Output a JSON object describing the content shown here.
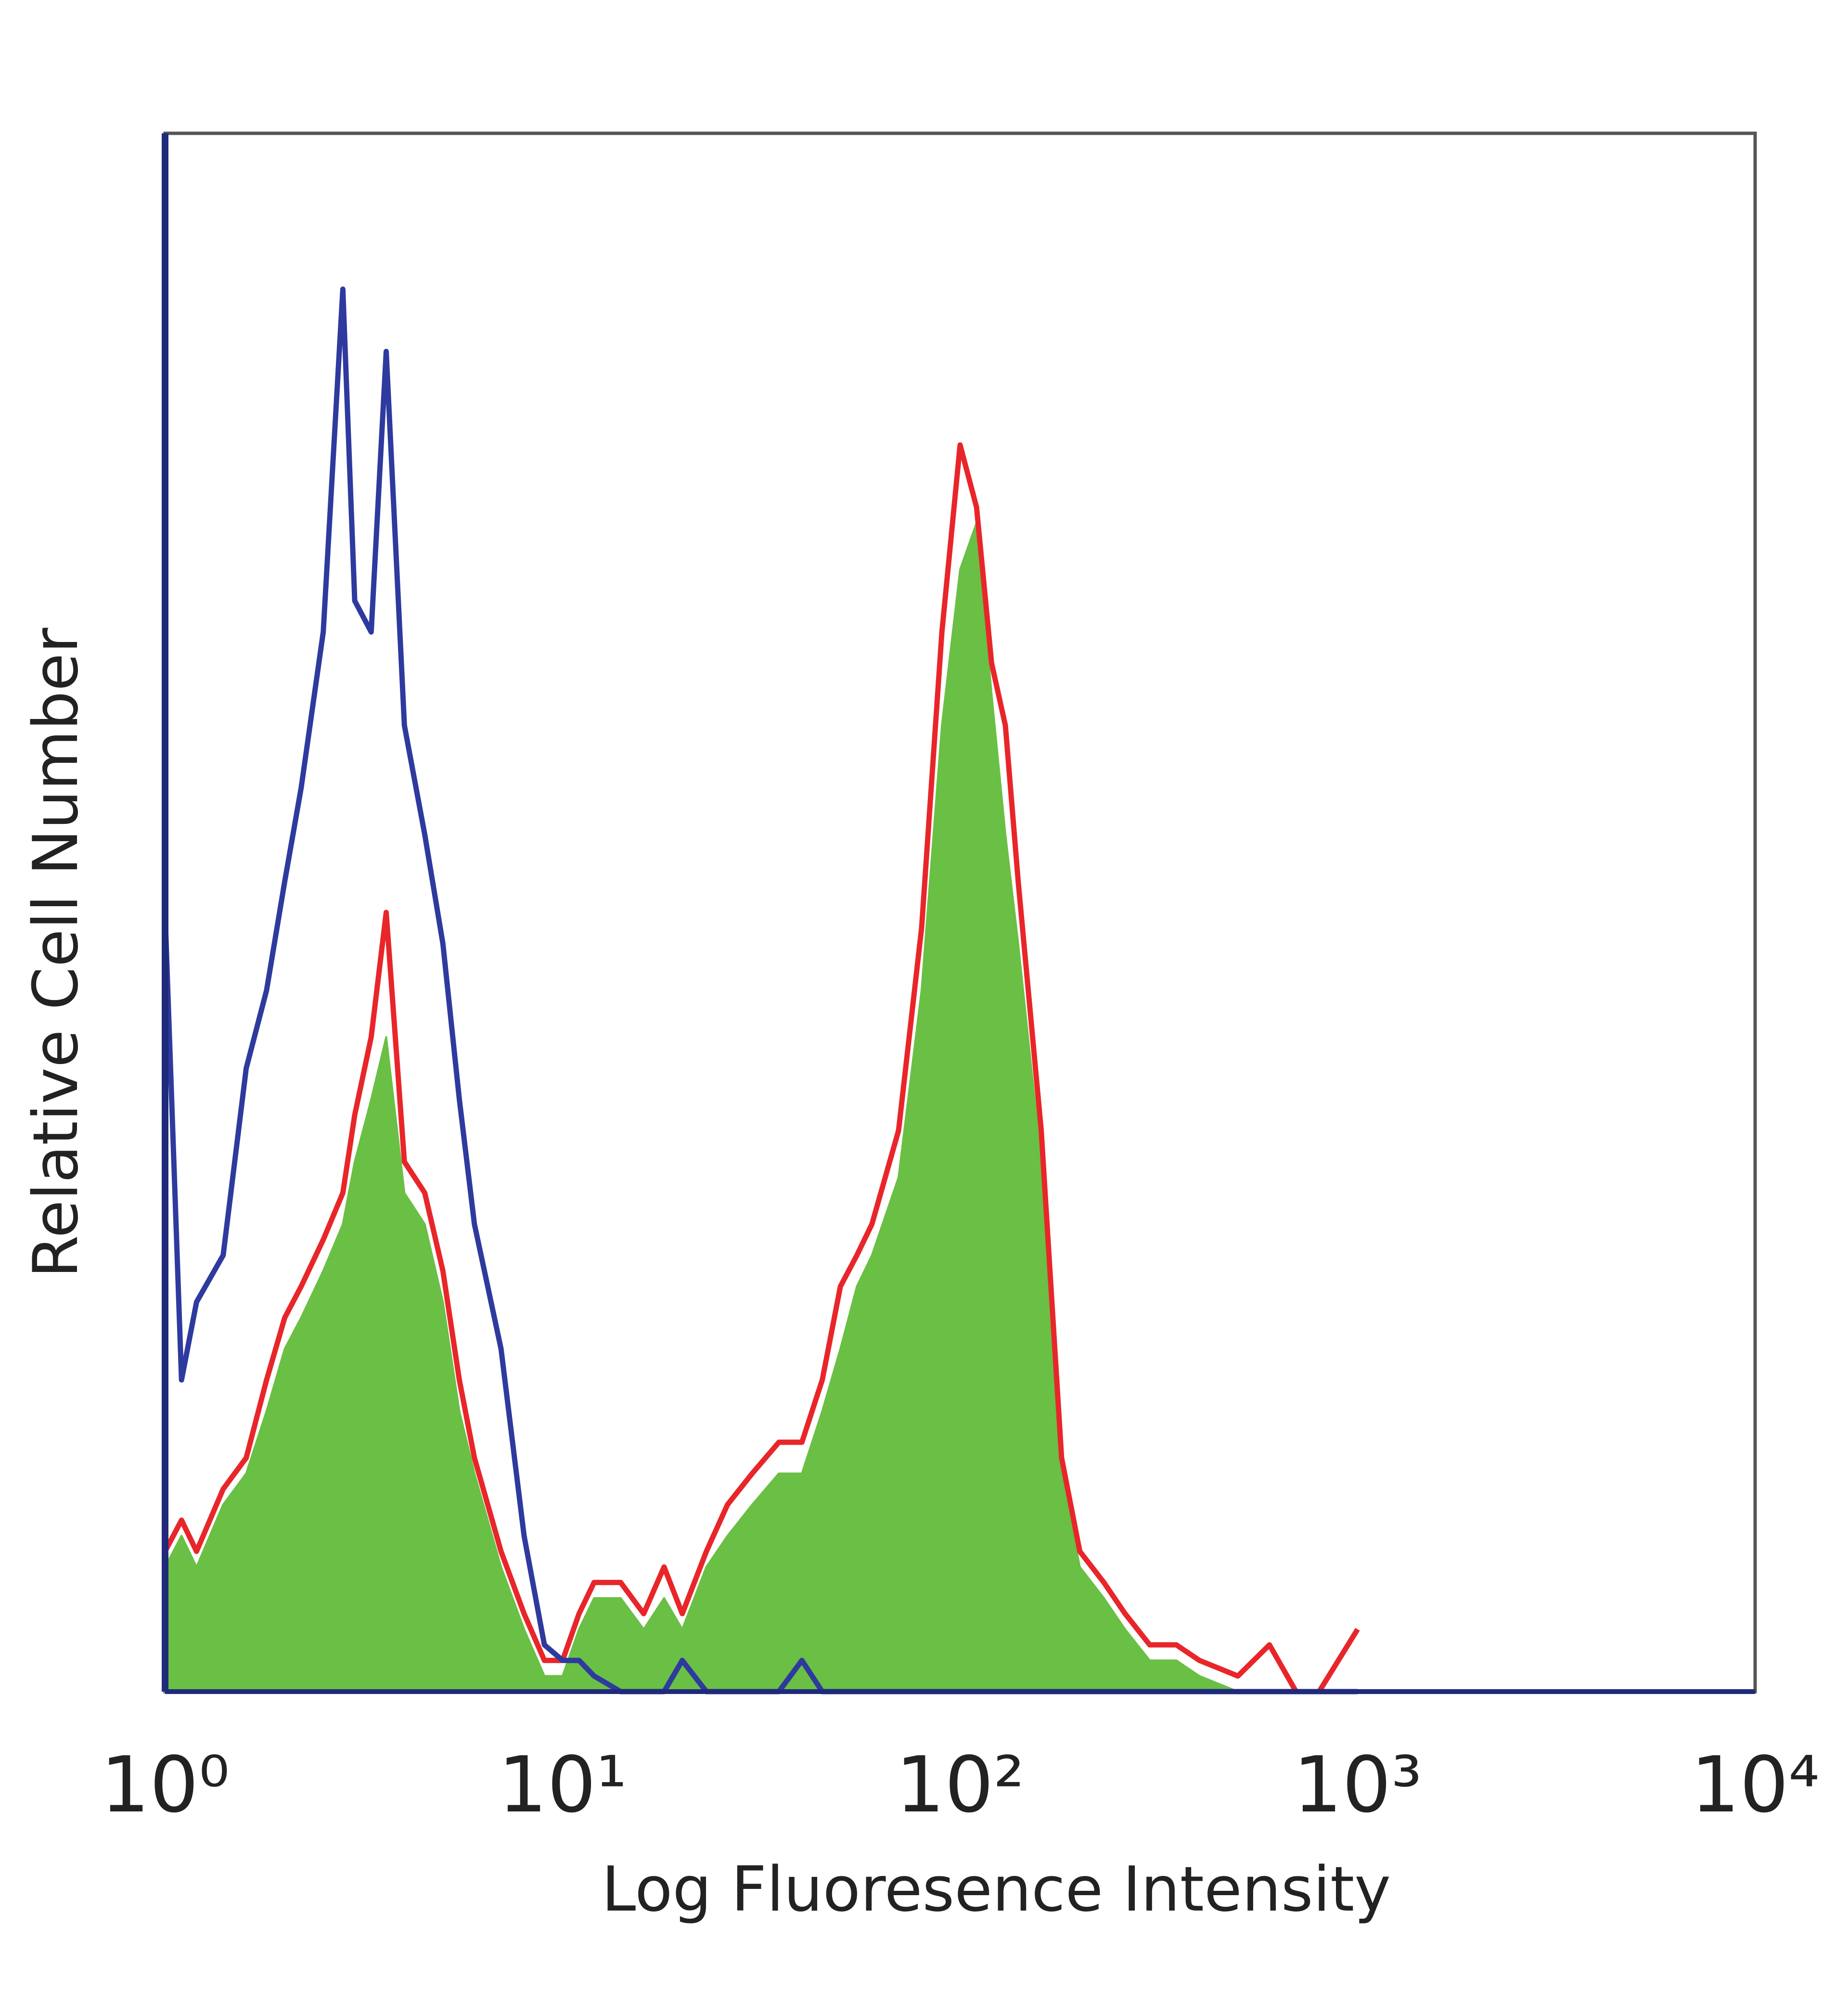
{
  "chart_data": {
    "type": "line",
    "x_label": "Log Fluoresence Intensity",
    "y_label": "Relative Cell Number",
    "xscale": "log",
    "xlim": [
      1,
      10000
    ],
    "ylim": [
      0,
      100
    ],
    "xticks": [
      {
        "value": 1,
        "label": "10⁰"
      },
      {
        "value": 10,
        "label": "10¹"
      },
      {
        "value": 100,
        "label": "10²"
      },
      {
        "value": 1000,
        "label": "10³"
      },
      {
        "value": 10000,
        "label": "10⁴"
      }
    ],
    "grid": false,
    "x": [
      1,
      1.1,
      1.2,
      1.4,
      1.6,
      1.8,
      2,
      2.2,
      2.5,
      2.8,
      3,
      3.3,
      3.6,
      4,
      4.5,
      5,
      5.5,
      6,
      7,
      8,
      9,
      10,
      11,
      12,
      14,
      16,
      18,
      20,
      23,
      26,
      30,
      35,
      40,
      45,
      50,
      55,
      60,
      70,
      80,
      90,
      100,
      110,
      120,
      130,
      140,
      160,
      180,
      200,
      230,
      260,
      300,
      350,
      400,
      500,
      600,
      700,
      800,
      1000
    ],
    "series": [
      {
        "color": "#6abf45",
        "fill": true,
        "values": [
          8,
          10,
          8,
          12,
          14,
          18,
          22,
          24,
          27,
          30,
          34,
          38,
          42,
          32,
          30,
          25,
          18,
          14,
          8,
          4,
          1,
          1,
          4,
          6,
          6,
          4,
          6,
          4,
          8,
          10,
          12,
          14,
          14,
          18,
          22,
          26,
          28,
          33,
          45,
          62,
          72,
          75,
          64,
          55,
          48,
          34,
          14,
          8,
          6,
          4,
          2,
          2,
          1,
          0,
          0,
          0,
          0,
          0
        ]
      },
      {
        "color": "#e8262a",
        "fill": false,
        "values": [
          9,
          11,
          9,
          13,
          15,
          20,
          24,
          26,
          29,
          32,
          37,
          42,
          50,
          34,
          32,
          27,
          20,
          15,
          9,
          5,
          2,
          2,
          5,
          7,
          7,
          5,
          8,
          5,
          9,
          12,
          14,
          16,
          16,
          20,
          26,
          28,
          30,
          36,
          49,
          68,
          80,
          76,
          66,
          62,
          52,
          36,
          15,
          9,
          7,
          5,
          3,
          3,
          2,
          1,
          3,
          0,
          0,
          4
        ]
      },
      {
        "color": "#2e3a9e",
        "fill": false,
        "values": [
          50,
          20,
          25,
          28,
          40,
          45,
          52,
          58,
          68,
          90,
          70,
          68,
          86,
          62,
          55,
          48,
          38,
          30,
          22,
          10,
          3,
          2,
          2,
          1,
          0,
          0,
          0,
          2,
          0,
          0,
          0,
          0,
          2,
          0,
          0,
          0,
          0,
          0,
          0,
          0,
          0,
          0,
          0,
          0,
          0,
          0,
          0,
          0,
          0,
          0,
          0,
          0,
          0,
          0,
          0,
          0,
          0,
          0
        ]
      }
    ]
  }
}
